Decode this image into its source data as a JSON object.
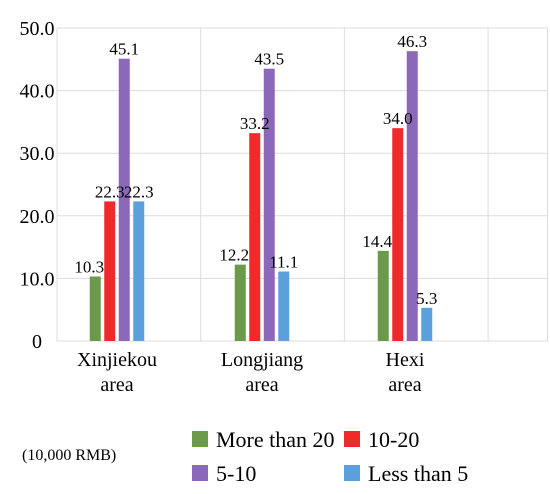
{
  "chart_data": {
    "type": "bar",
    "categories": [
      [
        "Xinjiekou",
        "area"
      ],
      [
        "Longjiang",
        "area"
      ],
      [
        "Hexi",
        "area"
      ]
    ],
    "series": [
      {
        "name": "More than 20",
        "color": "#6a9a4a",
        "values": [
          10.3,
          12.2,
          14.4
        ],
        "labels": [
          "10.3",
          "12.2",
          "14.4"
        ]
      },
      {
        "name": "10-20",
        "color": "#ee2a2a",
        "values": [
          22.3,
          33.2,
          34.0
        ],
        "labels": [
          "22.3",
          "33.2",
          "34.0"
        ]
      },
      {
        "name": "5-10",
        "color": "#8c68b8",
        "values": [
          45.1,
          43.5,
          46.3
        ],
        "labels": [
          "45.1",
          "43.5",
          "46.3"
        ]
      },
      {
        "name": "Less than 5",
        "color": "#5ba0dd",
        "values": [
          22.3,
          11.1,
          5.3
        ],
        "labels": [
          "22.3",
          "11.1",
          "5.3"
        ]
      }
    ],
    "yticks": [
      "0",
      "10.0",
      "20.0",
      "30.0",
      "40.0",
      "50.0"
    ],
    "ylim": [
      0,
      50
    ],
    "grid": true,
    "legend_position": "bottom",
    "unit_note": "(10,000 RMB)"
  }
}
